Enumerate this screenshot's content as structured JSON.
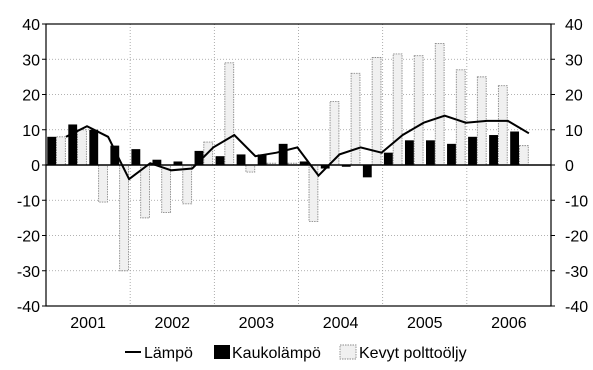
{
  "chart_data": {
    "type": "bar",
    "ylim": [
      -40,
      40
    ],
    "y_ticks": [
      "40",
      "30",
      "20",
      "10",
      "0",
      "-10",
      "-20",
      "-30",
      "-40"
    ],
    "y_ticks_right": [
      "40",
      "30",
      "20",
      "10",
      "0",
      "-10",
      "-20",
      "-30",
      "-40"
    ],
    "x_ticks": [
      "2001",
      "2002",
      "2003",
      "2004",
      "2005",
      "2006"
    ],
    "grid": true,
    "legend_position": "bottom",
    "quarters": [
      "2001Q1",
      "2001Q2",
      "2001Q3",
      "2001Q4",
      "2002Q1",
      "2002Q2",
      "2002Q3",
      "2002Q4",
      "2003Q1",
      "2003Q2",
      "2003Q3",
      "2003Q4",
      "2004Q1",
      "2004Q2",
      "2004Q3",
      "2004Q4",
      "2005Q1",
      "2005Q2",
      "2005Q3",
      "2005Q4",
      "2006Q1",
      "2006Q2",
      "2006Q3",
      "2006Q4"
    ],
    "series": [
      {
        "name": "Kevyt polttoöljy",
        "kind": "bar",
        "color": "#ffffff",
        "values": [
          8,
          10,
          -10.5,
          -30,
          -15,
          -13.5,
          -11,
          6.5,
          29,
          -2,
          0.5,
          0.5,
          -16,
          18,
          26,
          30.5,
          31.5,
          31,
          34.5,
          27,
          25,
          22.5,
          5.5,
          0
        ]
      },
      {
        "name": "Kaukolämpö",
        "kind": "bar",
        "color": "#000000",
        "values": [
          8,
          11.5,
          10,
          5.5,
          4.5,
          1.5,
          1,
          4,
          2.5,
          3,
          3,
          6,
          1,
          -1,
          -0.5,
          -3.5,
          3.5,
          7,
          7,
          6,
          8,
          8.5,
          9.5,
          0
        ]
      },
      {
        "name": "Lämpö",
        "kind": "line",
        "color": "#000000",
        "values": [
          8,
          11,
          8,
          -4,
          0.5,
          -1.5,
          -1,
          5,
          8.5,
          2.5,
          3.5,
          5,
          -3,
          3,
          5,
          3.5,
          8.5,
          12,
          14,
          12,
          12.5,
          12.5,
          9
        ]
      }
    ]
  }
}
